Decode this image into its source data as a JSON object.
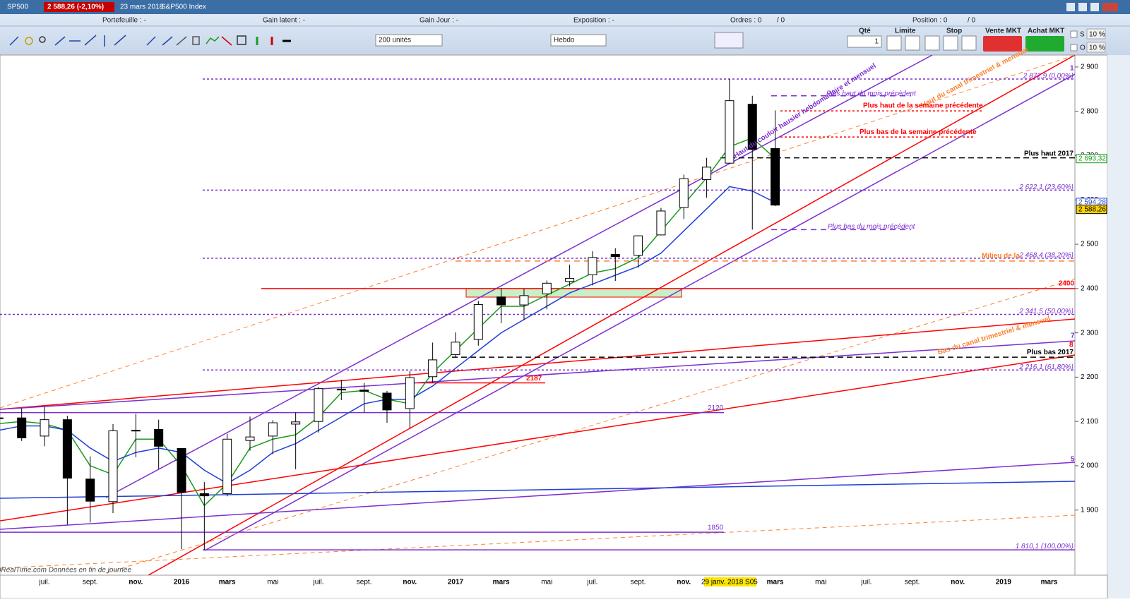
{
  "header": {
    "symbol": "SP500",
    "quote": "2 588,26 (-2,10%)",
    "date": "23 mars 2018",
    "name": "S&P500 Index"
  },
  "toolbar": {
    "portefeuille": "Portefeuille : -",
    "gain_latent": "Gain latent : -",
    "gain_jour": "Gain Jour : -",
    "exposition": "Exposition : -",
    "ordres": "Ordres : 0",
    "ordres2": "/ 0",
    "position": "Position : 0",
    "position2": "/ 0",
    "quantity_select": "200 unités",
    "period_select": "Hebdo",
    "qte": "Qté",
    "qte_value": "1",
    "limite": "Limite",
    "stop": "Stop",
    "vente": "Vente MKT",
    "achat": "Achat MKT",
    "s": "S",
    "o": "O",
    "pct1": "10 %",
    "pct2": "10 %"
  },
  "chart_data": {
    "type": "candlestick",
    "categories": [
      null,
      null,
      "juil.",
      null,
      "sept.",
      null,
      "nov.",
      null,
      "2016",
      null,
      "mars",
      null,
      "mai",
      null,
      "juil.",
      null,
      "sept.",
      null,
      "nov.",
      null,
      "2017",
      null,
      "mars",
      null,
      "mai",
      null,
      "juil.",
      null,
      "sept.",
      null,
      "nov.",
      null,
      "29 janv. 2018 S05",
      null,
      "mars",
      null,
      "mai",
      null,
      "juil.",
      null,
      "sept.",
      null,
      "nov.",
      null,
      "2019",
      null,
      "mars",
      null
    ],
    "ohlc": {
      "open": [
        2108,
        2108,
        2067,
        2104,
        1970,
        1919,
        2080,
        2082,
        2039,
        1937,
        1937,
        2057,
        2067,
        2094,
        2100,
        2173,
        2171,
        2164,
        2129,
        2201,
        2251,
        2285,
        2381,
        2363,
        2388,
        2416,
        2431,
        2477,
        2475,
        2521,
        2583,
        2646,
        2683,
        2816,
        2716,
        null,
        null,
        null,
        null,
        null,
        null,
        null,
        null,
        null,
        null,
        null,
        null,
        null
      ],
      "high": [
        2135,
        2130,
        2133,
        2113,
        2021,
        2094,
        2117,
        2104,
        2039,
        1963,
        2072,
        2111,
        2103,
        2120,
        2178,
        2194,
        2187,
        2169,
        2214,
        2278,
        2301,
        2372,
        2401,
        2399,
        2418,
        2454,
        2484,
        2491,
        2520,
        2582,
        2657,
        2695,
        2873,
        2835,
        2802,
        null,
        null,
        null,
        null,
        null,
        null,
        null,
        null,
        null,
        null,
        null,
        null,
        null
      ],
      "low": [
        2067,
        2056,
        2044,
        1867,
        1872,
        1893,
        2019,
        1993,
        1812,
        1810,
        1931,
        2034,
        2026,
        1992,
        2075,
        2148,
        2120,
        2097,
        2084,
        2188,
        2245,
        2271,
        2322,
        2329,
        2353,
        2405,
        2407,
        2417,
        2447,
        2520,
        2557,
        2605,
        2683,
        2533,
        2586,
        null,
        null,
        null,
        null,
        null,
        null,
        null,
        null,
        null,
        null,
        null,
        null,
        null
      ],
      "close": [
        2107,
        2063,
        2104,
        1972,
        1920,
        2079,
        2080,
        2044,
        1940,
        1932,
        2060,
        2065,
        2097,
        2099,
        2174,
        2171,
        2168,
        2126,
        2199,
        2239,
        2279,
        2364,
        2363,
        2384,
        2412,
        2423,
        2470,
        2472,
        2519,
        2575,
        2648,
        2674,
        2824,
        2714,
        2588.26,
        null,
        null,
        null,
        null,
        null,
        null,
        null,
        null,
        null,
        null,
        null,
        null,
        null
      ]
    },
    "series": [
      {
        "color": "#1a9a1a",
        "values": [
          2095,
          2100,
          2095,
          2080,
          2000,
          1980,
          2060,
          2060,
          2000,
          1910,
          1960,
          2040,
          2060,
          2070,
          2110,
          2165,
          2170,
          2150,
          2140,
          2210,
          2260,
          2310,
          2360,
          2360,
          2385,
          2410,
          2435,
          2445,
          2470,
          2530,
          2590,
          2650,
          2720,
          2740,
          2693.32,
          null,
          null,
          null,
          null,
          null,
          null,
          null,
          null,
          null,
          null,
          null,
          null,
          null
        ]
      },
      {
        "color": "#1f3fd6",
        "values": [
          2080,
          2090,
          2090,
          2080,
          2040,
          2010,
          2030,
          2040,
          2030,
          1990,
          1960,
          1990,
          2030,
          2050,
          2080,
          2110,
          2140,
          2150,
          2150,
          2180,
          2220,
          2260,
          2300,
          2330,
          2360,
          2390,
          2410,
          2430,
          2450,
          2480,
          2530,
          2580,
          2630,
          2620,
          2594.28,
          null,
          null,
          null,
          null,
          null,
          null,
          null,
          null,
          null,
          null,
          null,
          null,
          null
        ]
      }
    ],
    "price_labels": [
      {
        "value": 2693.32,
        "label": "2 693,32",
        "color": "#1a9a1a"
      },
      {
        "value": 2594.28,
        "label": "2 594,28",
        "color": "#1f3fd6"
      },
      {
        "value": 2588.26,
        "label": "2 588,26",
        "color": "#000000"
      }
    ],
    "ylim": [
      1753,
      2927
    ],
    "yticks": [
      {
        "value": 1900,
        "label": "1 900"
      },
      {
        "value": 2000,
        "label": "2 000"
      },
      {
        "value": 2100,
        "label": "2 100"
      },
      {
        "value": 2200,
        "label": "2 200"
      },
      {
        "value": 2300,
        "label": "2 300"
      },
      {
        "value": 2400,
        "label": "2 400"
      },
      {
        "value": 2500,
        "label": "2 500"
      },
      {
        "value": 2600,
        "label": "2 600"
      },
      {
        "value": 2700,
        "label": "2 700"
      },
      {
        "value": 2800,
        "label": "2 800"
      },
      {
        "value": 2900,
        "label": "2 900"
      }
    ],
    "levels": [
      {
        "label": "2 872,9 (0,00%)",
        "value": 2872.9,
        "color": "#7b2fd0"
      },
      {
        "label": "2 622,1 (23,60%)",
        "value": 2622.1,
        "color": "#7b2fd0"
      },
      {
        "label": "2 468,4 (38,20%)",
        "value": 2468.4,
        "color": "#7b2fd0"
      },
      {
        "label": "2 341,5 (50,00%)",
        "value": 2341.5,
        "color": "#7b2fd0"
      },
      {
        "label": "2 216,1 (61,80%)",
        "value": 2216.1,
        "color": "#7b2fd0"
      },
      {
        "label": "1 810,1 (100,00%)",
        "value": 1810.1,
        "color": "#7b2fd0"
      },
      {
        "label": "Plus haut 2017",
        "value": 2695,
        "color": "#000000"
      },
      {
        "label": "Plus bas 2017",
        "value": 2245,
        "color": "#000000"
      },
      {
        "label": "Plus haut de la semaine précédente",
        "value": 2801,
        "color": "#ff0000"
      },
      {
        "label": "Plus bas de la semaine précédente",
        "value": 2742,
        "color": "#ff0000"
      },
      {
        "label": "Plus haut du mois précédent",
        "value": 2835,
        "color": "#7b2fd0"
      },
      {
        "label": "Plus bas du mois précédent",
        "value": 2533,
        "color": "#7b2fd0"
      },
      {
        "label": "2400",
        "value": 2400,
        "color": "#ff0000"
      },
      {
        "label": "2187",
        "value": 2187,
        "color": "#ff0000"
      },
      {
        "label": "2120",
        "value": 2120,
        "color": "#7b2fd0"
      },
      {
        "label": "1850",
        "value": 1850,
        "color": "#7b2fd0"
      },
      {
        "label": "Milieu de la",
        "value": 2462,
        "color": "#ff7f2a"
      }
    ],
    "annotations": [
      "Haut du couloir hausier hebdomadaire et mensuel",
      "Haut du canal trimestriel & mensuel",
      "Bas du canal trimestriel & mensuel",
      "7",
      "8",
      "5",
      "1"
    ],
    "footer": "ProRealTime.com  Données en fin de journée"
  }
}
